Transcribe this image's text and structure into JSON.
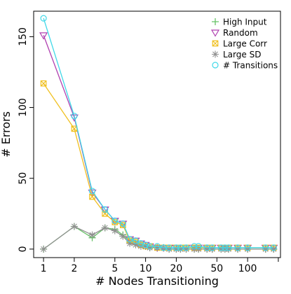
{
  "chart_data": {
    "type": "line",
    "title": "",
    "xlabel": "# Nodes Transitioning",
    "ylabel": "# Errors",
    "x_scale": "log",
    "xlim": [
      0.8,
      210
    ],
    "ylim": [
      -6,
      168
    ],
    "x_ticks": [
      1,
      2,
      5,
      10,
      20,
      50,
      100
    ],
    "x_tick_labels": [
      "1",
      "2",
      "5",
      "10",
      "20",
      "50",
      "100"
    ],
    "y_ticks": [
      0,
      50,
      100,
      150
    ],
    "y_tick_labels": [
      "0",
      "50",
      "100",
      "150"
    ],
    "grid": false,
    "legend_position": "top-right",
    "x": [
      1,
      2,
      3,
      4,
      5,
      6,
      7,
      8,
      9,
      10,
      11,
      13,
      15,
      17,
      20,
      22,
      25,
      30,
      33,
      40,
      45,
      55,
      60,
      65,
      80,
      100,
      150,
      180
    ],
    "series": [
      {
        "name": "High Input",
        "color": "#66c266",
        "marker": "plus",
        "values": [
          0,
          16,
          8,
          15,
          14,
          10,
          5,
          4,
          3,
          2,
          1,
          1,
          1,
          0,
          0,
          0,
          0,
          0,
          0,
          0,
          0,
          0,
          0,
          0,
          0,
          0,
          0,
          0
        ]
      },
      {
        "name": "Random",
        "color": "#b040b0",
        "marker": "triangle-down",
        "values": [
          151,
          93,
          40,
          28,
          20,
          18,
          7,
          6,
          4,
          3,
          2,
          1,
          1,
          1,
          1,
          1,
          1,
          1,
          1,
          1,
          1,
          1,
          1,
          1,
          1,
          1,
          1,
          1
        ]
      },
      {
        "name": "Large Corr",
        "color": "#f0c020",
        "marker": "square-x",
        "values": [
          117,
          85,
          37,
          25,
          19,
          17,
          6,
          5,
          3,
          2,
          2,
          1,
          1,
          1,
          1,
          1,
          1,
          1,
          1,
          1,
          1,
          1,
          1,
          1,
          1,
          1,
          1,
          1
        ]
      },
      {
        "name": "Large SD",
        "color": "#909090",
        "marker": "asterisk",
        "values": [
          0,
          16,
          10,
          15,
          13,
          9,
          4,
          3,
          2,
          2,
          1,
          1,
          1,
          0,
          0,
          0,
          0,
          0,
          0,
          0,
          0,
          0,
          0,
          0,
          0,
          0,
          0,
          0
        ]
      },
      {
        "name": "# Transitions",
        "color": "#40d8e8",
        "marker": "circle",
        "values": [
          163,
          94,
          41,
          28,
          20,
          18,
          7,
          6,
          4,
          3,
          2,
          2,
          1,
          1,
          1,
          1,
          1,
          2,
          2,
          1,
          1,
          1,
          1,
          1,
          1,
          1,
          1,
          1
        ]
      }
    ]
  }
}
